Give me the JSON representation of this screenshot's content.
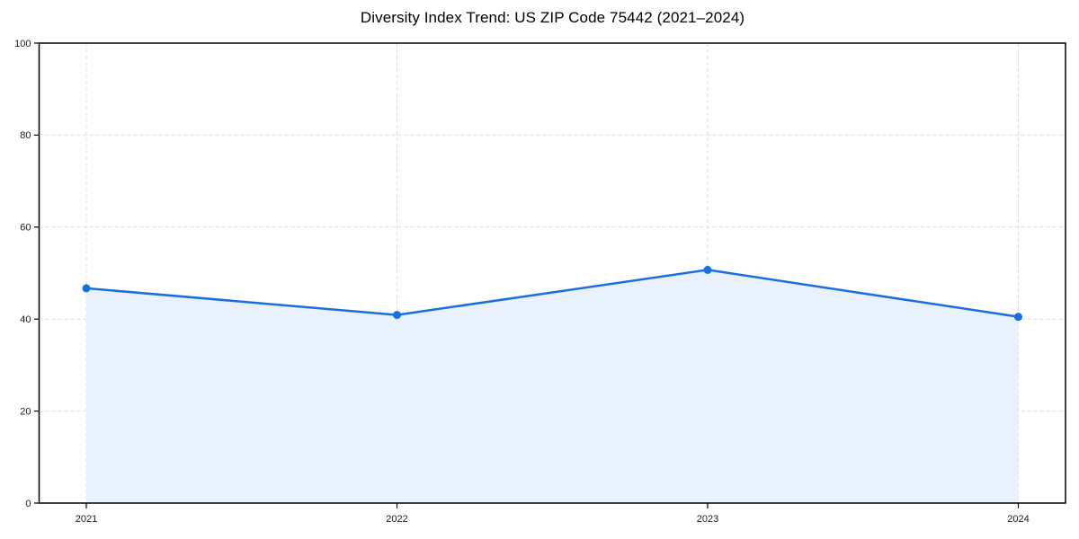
{
  "chart_data": {
    "type": "area",
    "title": "Diversity Index Trend: US ZIP Code 75442 (2021–2024)",
    "x": [
      "2021",
      "2022",
      "2023",
      "2024"
    ],
    "series": [
      {
        "name": "Diversity Index",
        "values": [
          46.7,
          40.9,
          50.7,
          40.5
        ]
      }
    ],
    "xlabel": "",
    "ylabel": "",
    "ylim": [
      0,
      100
    ],
    "yticks": [
      0,
      20,
      40,
      60,
      80,
      100
    ],
    "grid": "dashed, both axes",
    "legend_position": "none",
    "marker": "circle",
    "colors": {
      "line": "#1a6fe0",
      "fill": "#e8f1fc",
      "grid": "#dcdcdc",
      "axis": "#000000",
      "tick_label": "#1a1a1a",
      "title": "#000000"
    }
  }
}
